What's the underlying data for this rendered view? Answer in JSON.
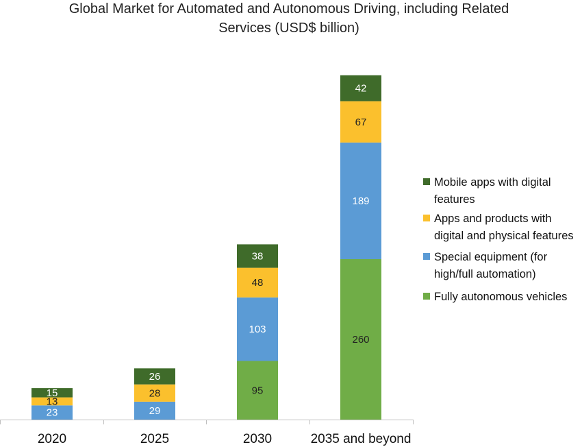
{
  "chart_data": {
    "type": "bar",
    "stacked": true,
    "title": "Global Market for Automated and Autonomous Driving, including Related Services (USD$ billion)",
    "title_lines": [
      "Global Market for Automated and Autonomous Driving, including Related",
      "Services (USD$ billion)"
    ],
    "xlabel": "",
    "ylabel": "",
    "ylim": [
      0,
      560
    ],
    "grid": false,
    "legend_position": "right",
    "categories": [
      "2020",
      "2025",
      "2030",
      "2035 and beyond"
    ],
    "series": [
      {
        "name": "Fully autonomous vehicles",
        "color": "#70ad47",
        "label_color": "#222222",
        "legend_lines": [
          "Fully autonomous vehicles"
        ],
        "values": [
          null,
          null,
          95,
          260
        ]
      },
      {
        "name": "Special equipment (for high/full automation)",
        "color": "#5b9bd5",
        "label_color": "#ffffff",
        "legend_lines": [
          "Special equipment (for",
          "high/full automation)"
        ],
        "values": [
          23,
          29,
          103,
          189
        ]
      },
      {
        "name": "Apps and products with digital and physical features",
        "color": "#fbc02d",
        "label_color": "#222222",
        "legend_lines": [
          "Apps and products with",
          "digital and physical features"
        ],
        "values": [
          13,
          28,
          48,
          67
        ]
      },
      {
        "name": "Mobile apps with digital features",
        "color": "#3f6b2a",
        "label_color": "#ffffff",
        "legend_lines": [
          "Mobile apps with digital",
          "features"
        ],
        "values": [
          15,
          26,
          38,
          42
        ]
      }
    ]
  }
}
